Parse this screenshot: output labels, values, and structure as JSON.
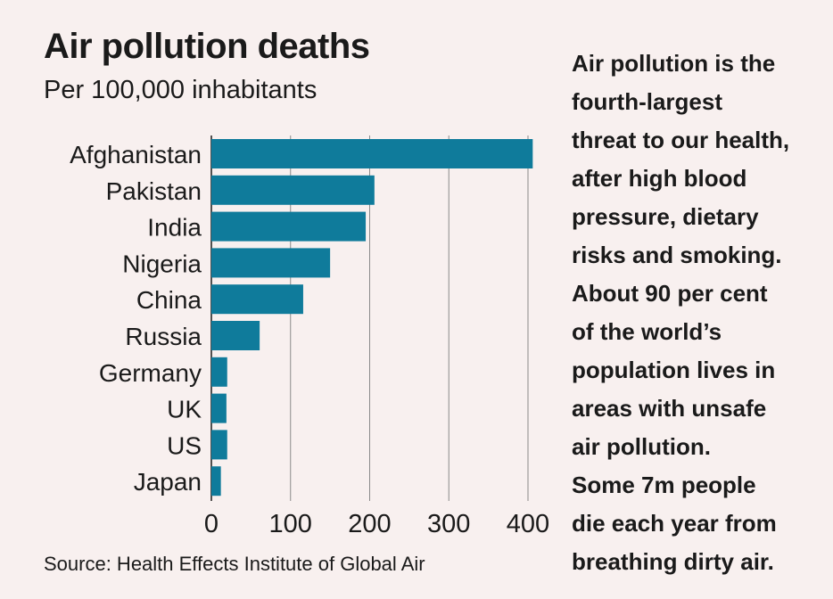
{
  "chart_data": {
    "type": "bar",
    "orientation": "horizontal",
    "title": "Air pollution deaths",
    "subtitle": "Per 100,000 inhabitants",
    "categories": [
      "Afghanistan",
      "Pakistan",
      "India",
      "Nigeria",
      "China",
      "Russia",
      "Germany",
      "UK",
      "US",
      "Japan"
    ],
    "values": [
      406,
      206,
      195,
      150,
      116,
      61,
      20,
      19,
      20,
      12
    ],
    "xlim": [
      0,
      400
    ],
    "xticks": [
      "0",
      "100",
      "200",
      "300",
      "400"
    ],
    "grid": true,
    "bar_color": "#0f7b9b",
    "source": "Source: Health Effects Institute of Global Air"
  },
  "side_note": {
    "lines": [
      "Air pollution is the",
      "fourth-largest",
      "threat to our health,",
      "after high blood",
      "pressure, dietary",
      "risks and smoking.",
      "About 90 per cent",
      "of the world’s",
      "population lives in",
      "areas with unsafe",
      "air pollution.",
      "Some 7m people",
      "die each year from",
      "breathing dirty air."
    ]
  },
  "colors": {
    "background": "#f8f0ef",
    "bar": "#0f7b9b",
    "grid": "#8a8a8a",
    "text": "#1a1a1a"
  }
}
